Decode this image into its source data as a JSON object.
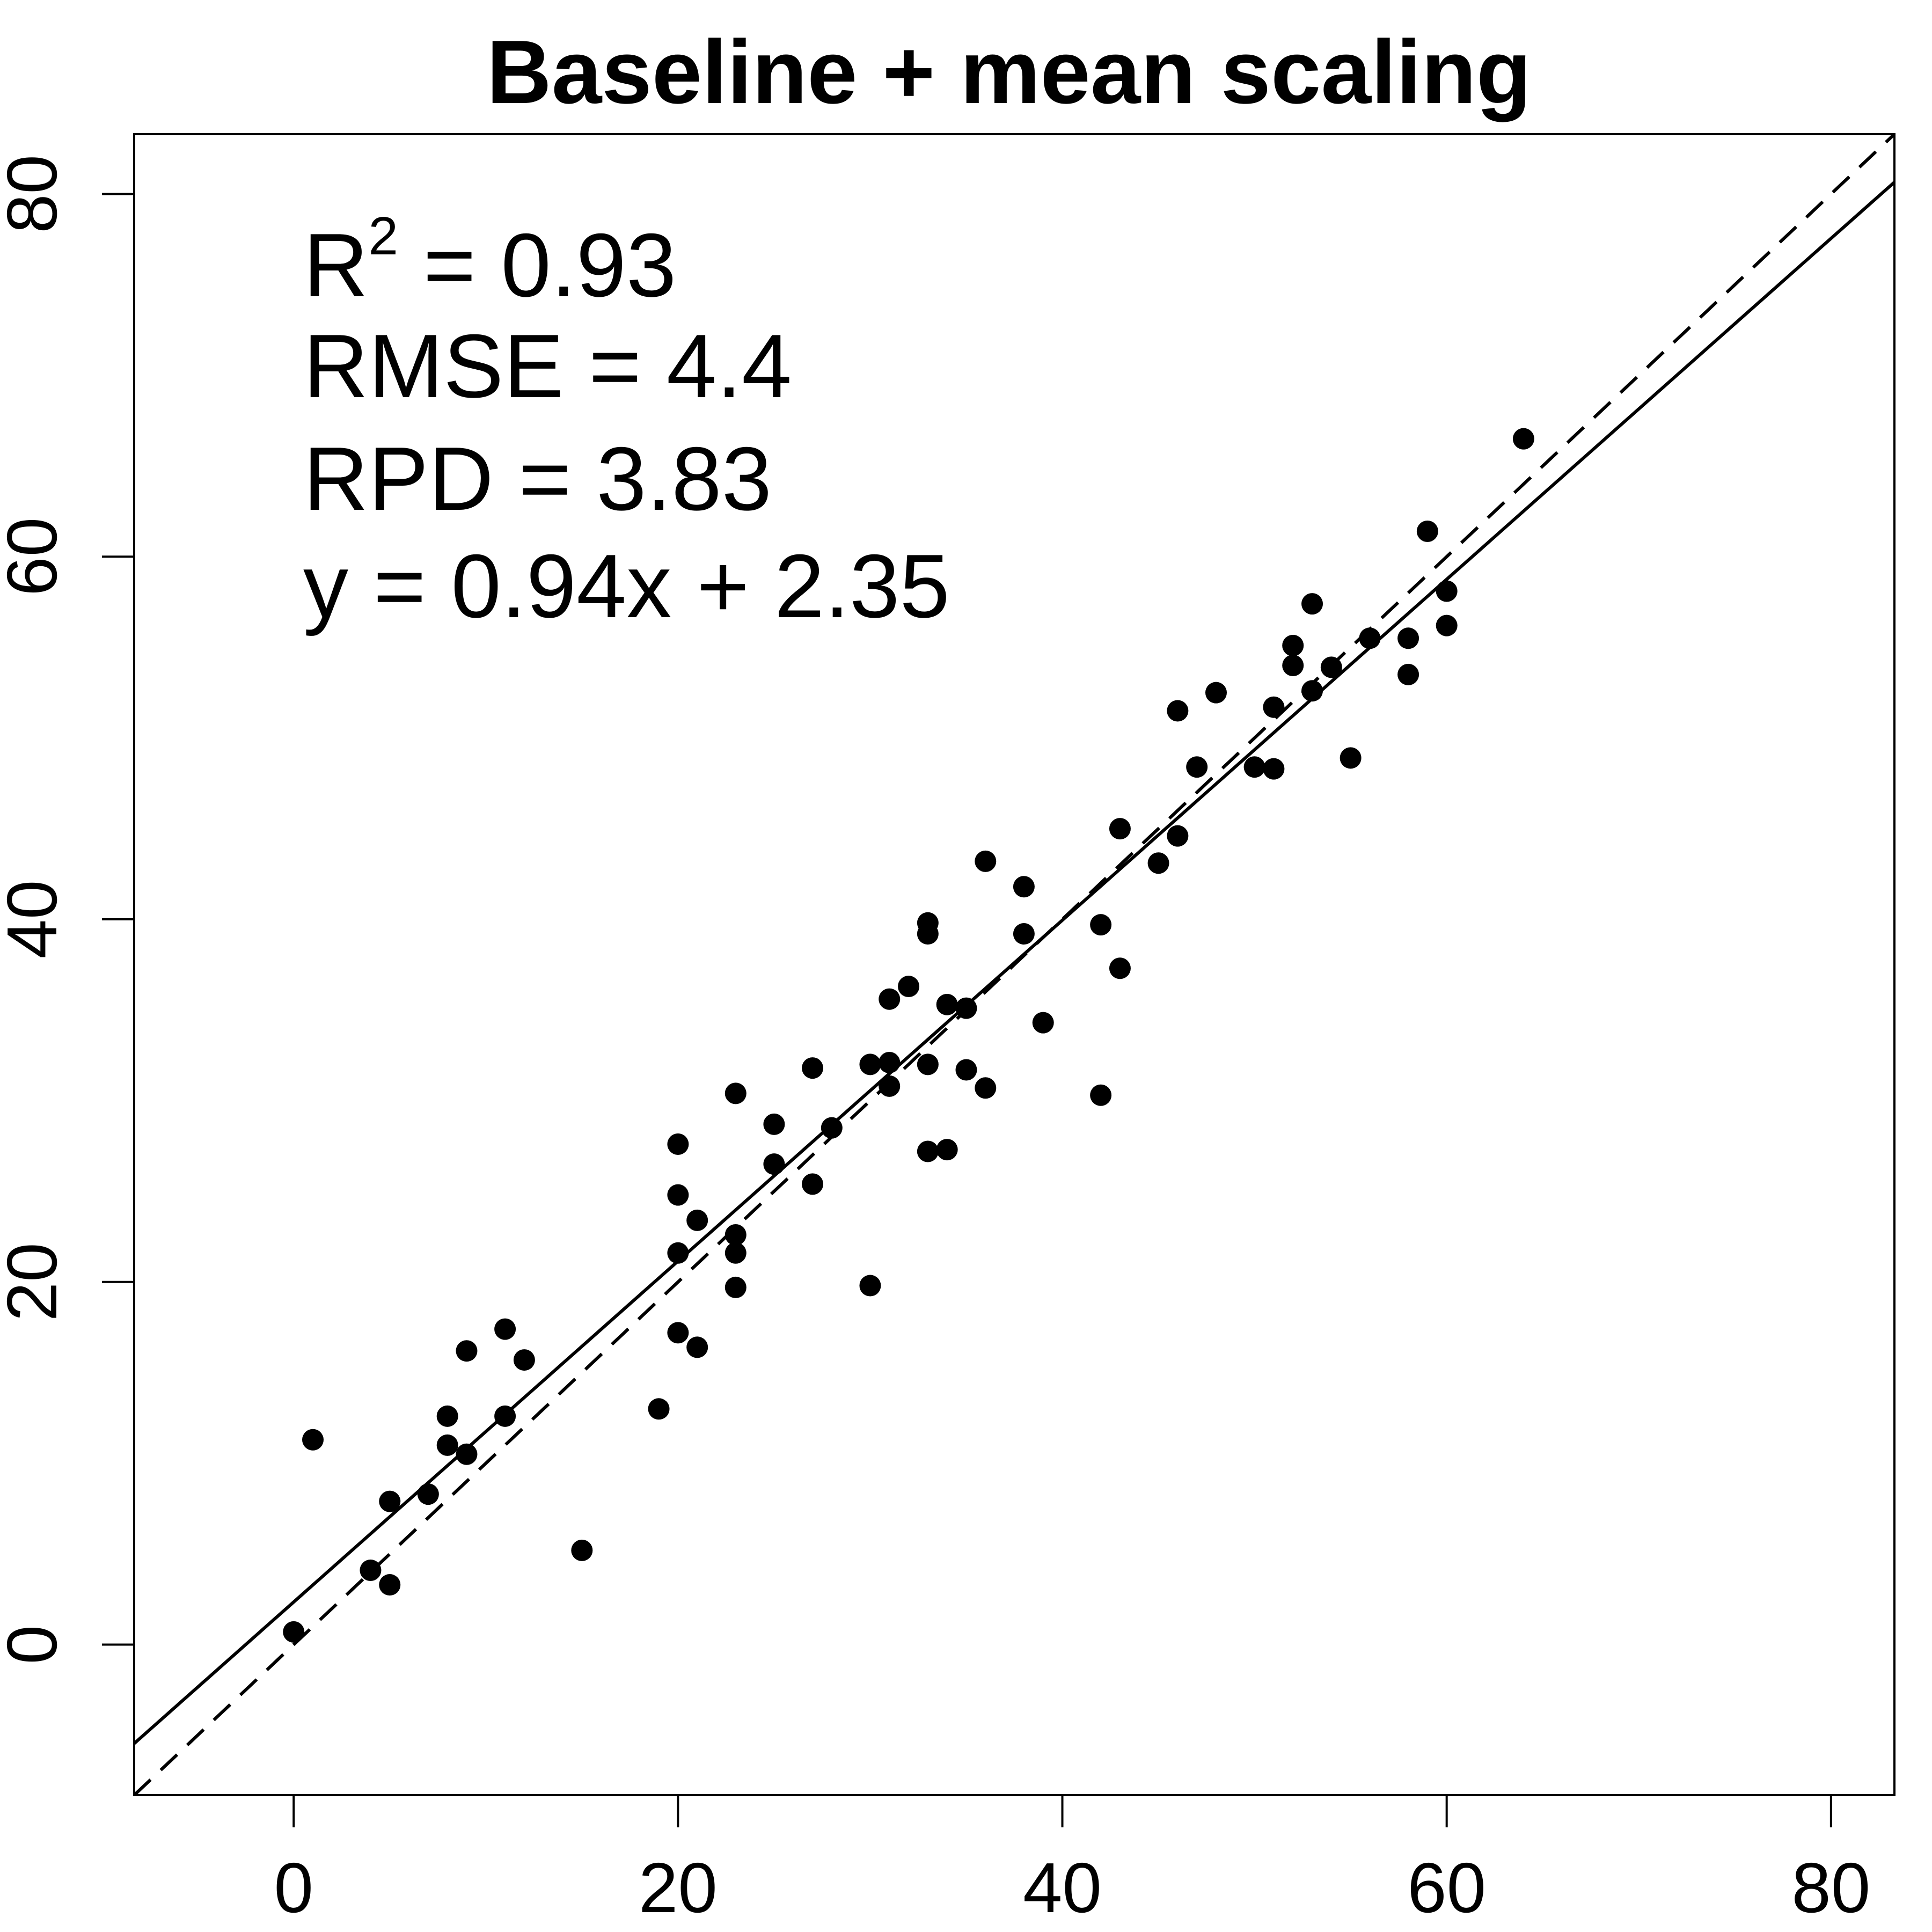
{
  "chart_data": {
    "type": "scatter",
    "title": "Baseline + mean scaling",
    "xlabel": "",
    "ylabel": "",
    "xlim": [
      -8.3,
      83.3
    ],
    "ylim": [
      -8.3,
      83.3
    ],
    "xticks": [
      0,
      20,
      40,
      60,
      80
    ],
    "yticks": [
      0,
      20,
      40,
      60,
      80
    ],
    "xtick_labels": [
      "0",
      "20",
      "40",
      "60",
      "80"
    ],
    "ytick_labels": [
      "0",
      "20",
      "40",
      "60",
      "80"
    ],
    "grid": false,
    "annotations": {
      "r2_label": "R",
      "r2_sup": "2",
      "r2_value": " = 0.93",
      "rmse": "RMSE = 4.4",
      "rpd": "RPD = 3.83",
      "equation": "y = 0.94x + 2.35"
    },
    "fit_line": {
      "slope": 0.94,
      "intercept": 2.35,
      "style": "solid"
    },
    "reference_line": {
      "slope": 1,
      "intercept": 0,
      "style": "dashed"
    },
    "points": [
      {
        "x": 0,
        "y": 0.7
      },
      {
        "x": 1,
        "y": 11.3
      },
      {
        "x": 4,
        "y": 4.1
      },
      {
        "x": 5,
        "y": 3.3
      },
      {
        "x": 5,
        "y": 7.9
      },
      {
        "x": 7,
        "y": 8.3
      },
      {
        "x": 8,
        "y": 11.0
      },
      {
        "x": 8,
        "y": 12.6
      },
      {
        "x": 9,
        "y": 10.5
      },
      {
        "x": 9,
        "y": 16.2
      },
      {
        "x": 11,
        "y": 12.6
      },
      {
        "x": 11,
        "y": 17.4
      },
      {
        "x": 12,
        "y": 15.7
      },
      {
        "x": 15,
        "y": 5.2
      },
      {
        "x": 19,
        "y": 13.0
      },
      {
        "x": 20,
        "y": 17.2
      },
      {
        "x": 20,
        "y": 21.6
      },
      {
        "x": 20,
        "y": 24.8
      },
      {
        "x": 20,
        "y": 27.6
      },
      {
        "x": 21,
        "y": 16.4
      },
      {
        "x": 21,
        "y": 23.4
      },
      {
        "x": 23,
        "y": 19.7
      },
      {
        "x": 23,
        "y": 21.6
      },
      {
        "x": 23,
        "y": 22.6
      },
      {
        "x": 23,
        "y": 30.4
      },
      {
        "x": 25,
        "y": 26.5
      },
      {
        "x": 25,
        "y": 28.7
      },
      {
        "x": 27,
        "y": 25.4
      },
      {
        "x": 27,
        "y": 31.8
      },
      {
        "x": 28,
        "y": 28.5
      },
      {
        "x": 30,
        "y": 19.8
      },
      {
        "x": 30,
        "y": 32.0
      },
      {
        "x": 31,
        "y": 30.8
      },
      {
        "x": 31,
        "y": 32.1
      },
      {
        "x": 31,
        "y": 35.6
      },
      {
        "x": 32,
        "y": 36.3
      },
      {
        "x": 33,
        "y": 27.2
      },
      {
        "x": 33,
        "y": 32.0
      },
      {
        "x": 33,
        "y": 39.2
      },
      {
        "x": 33,
        "y": 39.8
      },
      {
        "x": 34,
        "y": 27.3
      },
      {
        "x": 34,
        "y": 35.3
      },
      {
        "x": 35,
        "y": 31.7
      },
      {
        "x": 35,
        "y": 35.1
      },
      {
        "x": 36,
        "y": 30.7
      },
      {
        "x": 36,
        "y": 43.2
      },
      {
        "x": 38,
        "y": 39.2
      },
      {
        "x": 38,
        "y": 41.8
      },
      {
        "x": 39,
        "y": 34.3
      },
      {
        "x": 42,
        "y": 30.3
      },
      {
        "x": 42,
        "y": 39.7
      },
      {
        "x": 43,
        "y": 37.3
      },
      {
        "x": 43,
        "y": 45.0
      },
      {
        "x": 45,
        "y": 43.1
      },
      {
        "x": 46,
        "y": 44.6
      },
      {
        "x": 46,
        "y": 51.5
      },
      {
        "x": 47,
        "y": 48.4
      },
      {
        "x": 48,
        "y": 52.5
      },
      {
        "x": 50,
        "y": 48.4
      },
      {
        "x": 51,
        "y": 48.3
      },
      {
        "x": 51,
        "y": 51.7
      },
      {
        "x": 52,
        "y": 54.0
      },
      {
        "x": 52,
        "y": 55.1
      },
      {
        "x": 53,
        "y": 52.6
      },
      {
        "x": 53,
        "y": 57.4
      },
      {
        "x": 54,
        "y": 53.9
      },
      {
        "x": 55,
        "y": 48.9
      },
      {
        "x": 56,
        "y": 55.5
      },
      {
        "x": 58,
        "y": 53.5
      },
      {
        "x": 58,
        "y": 55.5
      },
      {
        "x": 59,
        "y": 61.4
      },
      {
        "x": 60,
        "y": 56.2
      },
      {
        "x": 60,
        "y": 58.1
      },
      {
        "x": 64,
        "y": 66.5
      }
    ]
  }
}
